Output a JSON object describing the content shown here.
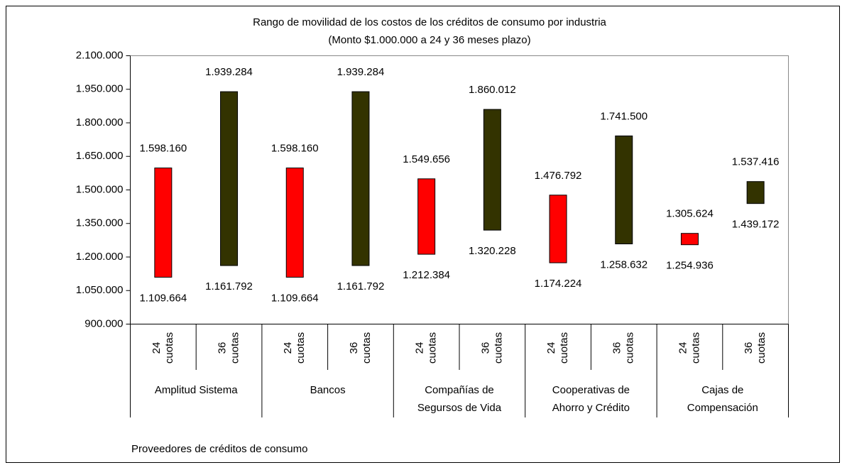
{
  "chart_data": {
    "type": "floating-bar",
    "title": "Rango de movilidad de los costos de los créditos de consumo por industria",
    "subtitle": "(Monto $1.000.000 a 24 y 36 meses plazo)",
    "x_label": "Proveedores de créditos de consumo",
    "groups": [
      [
        "Amplitud Sistema"
      ],
      [
        "Bancos"
      ],
      [
        "Compañías de",
        "Segursos de Vida"
      ],
      [
        "Cooperativas de",
        "Ahorro y Crédito"
      ],
      [
        "Cajas de",
        "Compensación"
      ]
    ],
    "categories": [
      [
        "24",
        "cuotas"
      ],
      [
        "36",
        "cuotas"
      ],
      [
        "24",
        "cuotas"
      ],
      [
        "36",
        "cuotas"
      ],
      [
        "24",
        "cuotas"
      ],
      [
        "36",
        "cuotas"
      ],
      [
        "24",
        "cuotas"
      ],
      [
        "36",
        "cuotas"
      ],
      [
        "24",
        "cuotas"
      ],
      [
        "36",
        "cuotas"
      ]
    ],
    "colors": [
      "#ff0000",
      "#333300",
      "#ff0000",
      "#333300",
      "#ff0000",
      "#333300",
      "#ff0000",
      "#333300",
      "#ff0000",
      "#333300"
    ],
    "low": {
      "values": [
        1109664,
        1161792,
        1109664,
        1161792,
        1212384,
        1320228,
        1174224,
        1258632,
        1254936,
        1439172
      ],
      "value_labels": [
        "1.109.664",
        "1.161.792",
        "1.109.664",
        "1.161.792",
        "1.212.384",
        "1.320.228",
        "1.174.224",
        "1.258.632",
        "1.254.936",
        "1.439.172"
      ]
    },
    "high": {
      "values": [
        1598160,
        1939284,
        1598160,
        1939284,
        1549656,
        1860012,
        1476792,
        1741500,
        1305624,
        1537416
      ],
      "value_labels": [
        "1.598.160",
        "1.939.284",
        "1.598.160",
        "1.939.284",
        "1.549.656",
        "1.860.012",
        "1.476.792",
        "1.741.500",
        "1.305.624",
        "1.537.416"
      ]
    },
    "ylim": [
      900000,
      2100000
    ],
    "yticks": [
      {
        "value": 900000,
        "label": "900.000"
      },
      {
        "value": 1050000,
        "label": "1.050.000"
      },
      {
        "value": 1200000,
        "label": "1.200.000"
      },
      {
        "value": 1350000,
        "label": "1.350.000"
      },
      {
        "value": 1500000,
        "label": "1.500.000"
      },
      {
        "value": 1650000,
        "label": "1.650.000"
      },
      {
        "value": 1800000,
        "label": "1.800.000"
      },
      {
        "value": 1950000,
        "label": "1.950.000"
      },
      {
        "value": 2100000,
        "label": "2.100.000"
      }
    ]
  }
}
